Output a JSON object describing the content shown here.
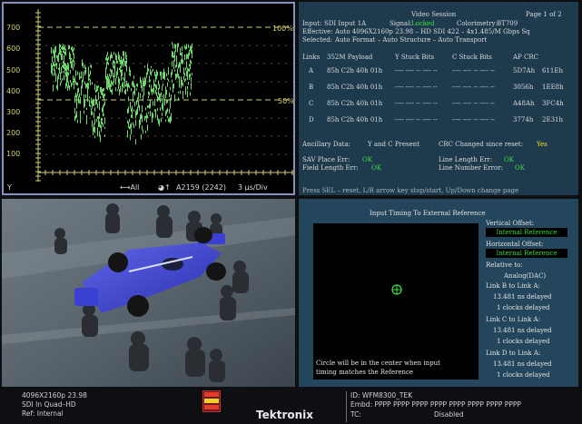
{
  "waveform": {
    "y_ticks": [
      "700",
      "600",
      "500",
      "400",
      "300",
      "200",
      "100"
    ],
    "pct_100": "100%",
    "pct_50": "50%",
    "channel": "Y",
    "status_all": "⟷All",
    "status_line": "A2159 (2242)",
    "status_timebase": "3 µs/Div",
    "colors": {
      "trace": "#7dff7d",
      "graticule": "#d4d26a",
      "border": "#8890c0"
    }
  },
  "session": {
    "title": "Video Session",
    "page": "Page 1 of 2",
    "input_label": "Input:",
    "input_value": "SDI Input 1A",
    "signal_label": "Signal:",
    "signal_value": "Locked",
    "colorimetry_label": "Colorimetry:",
    "colorimetry_value": "BT709",
    "effective_label": "Effective:",
    "effective_value": "Auto 4096X2160p 23.98 – HD SDI 422 – 4x1.485/M Gbps Sq",
    "selected_label": "Selected:",
    "selected_value": "Auto Format – Auto Structure – Auto Transport",
    "headers": [
      "Links",
      "352M Payload",
      "Y Stuck Bits",
      "C Stuck Bits",
      "AP CRC"
    ],
    "rows": [
      {
        "link": "A",
        "payload": "85h C2h 40h 01h",
        "y": "---- ---- -- ----  --",
        "c": "---- ---- -- ----  --",
        "crc1": "5D7Ah",
        "crc2": "611Eh"
      },
      {
        "link": "B",
        "payload": "85h C2h 40h 01h",
        "y": "---- ---- -- ----  --",
        "c": "---- ---- -- ----  --",
        "crc1": "3056h",
        "crc2": "1EE8h"
      },
      {
        "link": "C",
        "payload": "85h C2h 40h 01h",
        "y": "---- ---- -- ----  --",
        "c": "---- ---- -- ----  --",
        "crc1": "A48Ah",
        "crc2": "3FC4h"
      },
      {
        "link": "D",
        "payload": "85h C2h 40h 01h",
        "y": "---- ---- -- ----  --",
        "c": "---- ---- -- ----  --",
        "crc1": "3774h",
        "crc2": "2E31h"
      }
    ],
    "ancillary_label": "Ancillary Data:",
    "ancillary_value": "Y and C Present",
    "crc_label": "CRC Changed since reset:",
    "crc_value": "Yes",
    "sav_label": "SAV Place Err:",
    "sav_value": "OK",
    "line_length_label": "Line Length Err:",
    "line_length_value": "OK",
    "field_length_label": "Field Length Err:",
    "field_length_value": "OK",
    "line_number_label": "Line Number Error:",
    "line_number_value": "OK",
    "hint": "Press SEL – reset, L/R arrow key stop/start, Up/Down change page"
  },
  "timing": {
    "title": "Input Timing To External Reference",
    "vertical_label": "Vertical Offset:",
    "vertical_value": "Internal Reference",
    "horizontal_label": "Horizontal Offset:",
    "horizontal_value": "Internal Reference",
    "relative_label": "Relative to:",
    "relative_value": "Analog(DAC)",
    "linkb_label": "Link B to Link A:",
    "linkb_ns": "13.481 ns delayed",
    "linkb_clk": "1 clocks delayed",
    "linkc_label": "Link C to Link A:",
    "linkc_ns": "13.481 ns delayed",
    "linkc_clk": "1 clocks delayed",
    "linkd_label": "Link D to Link A:",
    "linkd_ns": "13.481 ns delayed",
    "linkd_clk": "1 clocks delayed",
    "note_line1": "Circle will be in the center when input",
    "note_line2": "timing matches the Reference"
  },
  "footer": {
    "format": "4096X2160p 23.98",
    "sdi": "SDI In Quad–HD",
    "ref": "Ref: Internal",
    "brand": "Tektronix",
    "id": "ID: WFM8300_TEK",
    "embd": "Embd: PPPP PPPP PPPP PPPP PPPP PPPP PPPP PPPP",
    "tc": "TC:",
    "tc_value": "Disabled"
  }
}
